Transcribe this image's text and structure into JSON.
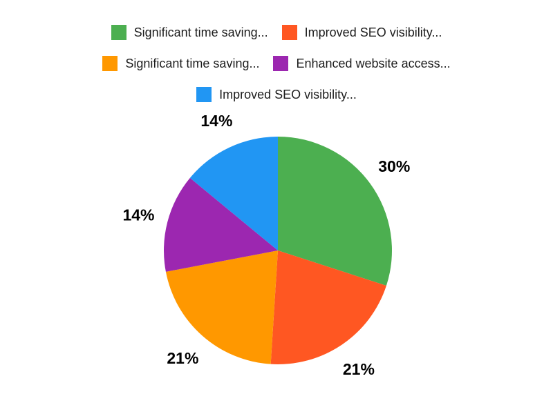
{
  "canvas": {
    "background": "#ffffff",
    "label_color": "#000000",
    "legend_text_color": "#1c1c1c"
  },
  "chart_data": {
    "type": "pie",
    "title": "",
    "direction": "clockwise",
    "start_angle_deg": 0,
    "legend_position": "top",
    "slices": [
      {
        "label": "Significant time saving...",
        "value": 30,
        "display": "30%",
        "color": "#4CAF50"
      },
      {
        "label": "Improved SEO visibility...",
        "value": 21,
        "display": "21%",
        "color": "#FF5722"
      },
      {
        "label": "Significant time saving...",
        "value": 21,
        "display": "21%",
        "color": "#FF9800"
      },
      {
        "label": "Enhanced website access...",
        "value": 14,
        "display": "14%",
        "color": "#9C27B0"
      },
      {
        "label": "Improved SEO visibility...",
        "value": 14,
        "display": "14%",
        "color": "#2196F3"
      }
    ],
    "legend_rows": [
      [
        0,
        1
      ],
      [
        2,
        3
      ],
      [
        4
      ]
    ]
  }
}
